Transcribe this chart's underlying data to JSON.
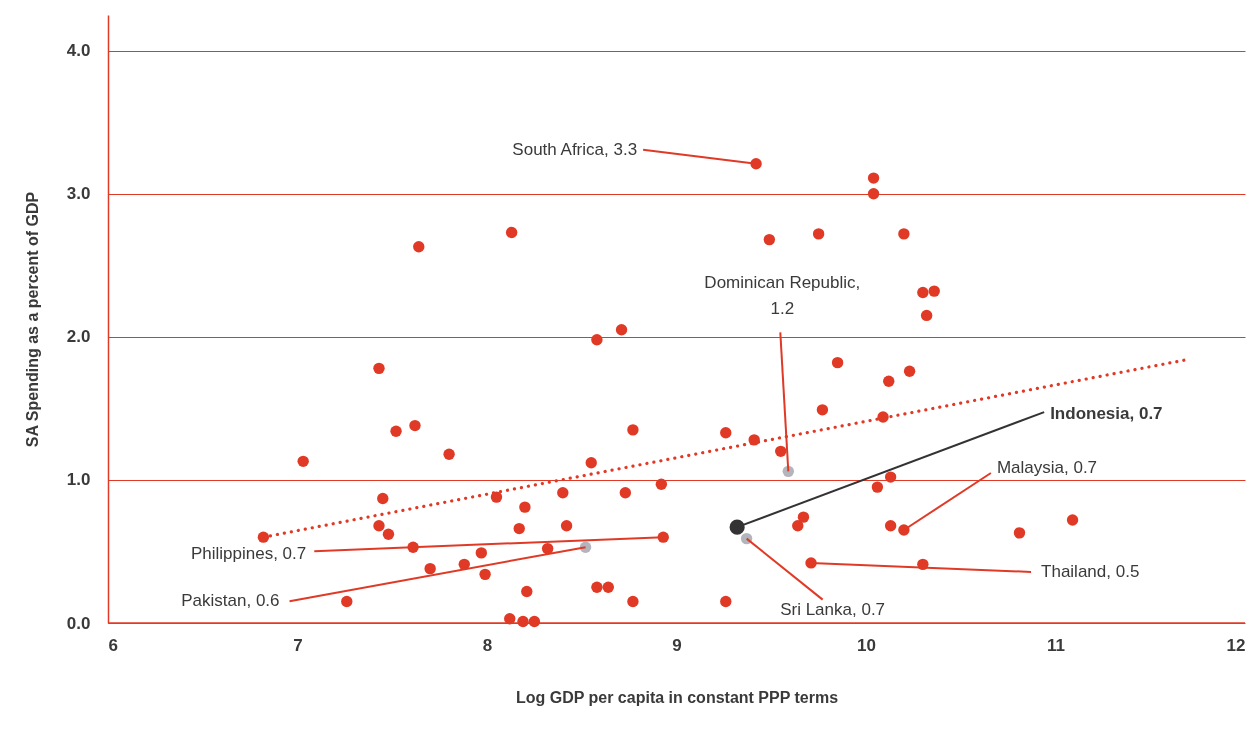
{
  "chart_data": {
    "type": "scatter",
    "xlabel": "Log GDP per capita in constant PPP terms",
    "ylabel": "SA Spending as a percent of GDP",
    "xlim": [
      6,
      12
    ],
    "ylim": [
      0,
      4.25
    ],
    "xticks": [
      6,
      7,
      8,
      9,
      10,
      11,
      12
    ],
    "yticks": [
      {
        "value": 0,
        "label": "0.0"
      },
      {
        "value": 1,
        "label": "1.0"
      },
      {
        "value": 2,
        "label": "2.0"
      },
      {
        "value": 3,
        "label": "3.0"
      },
      {
        "value": 4,
        "label": "4.0"
      }
    ],
    "grid": "y",
    "series": [
      {
        "marker": "circle",
        "color": "#e03a26",
        "x": [
          6.82,
          7.03,
          7.64,
          8.13,
          7.43,
          7.52,
          7.62,
          7.8,
          7.45,
          7.43,
          7.48,
          7.61,
          7.7,
          7.88,
          7.97,
          7.99,
          7.26,
          8.05,
          8.2,
          8.17,
          8.32,
          8.21,
          8.12,
          8.19,
          8.25,
          8.4,
          8.42,
          8.55,
          8.58,
          8.71,
          8.73,
          8.77,
          8.58,
          8.64,
          8.77,
          8.92,
          8.93,
          9.42,
          10.04,
          10.04,
          9.49,
          9.75,
          10.2,
          10.3,
          10.36,
          10.32,
          9.85,
          10.23,
          10.12,
          9.77,
          10.09,
          9.26,
          9.41,
          9.55,
          10.13,
          10.06,
          9.67,
          9.64,
          10.13,
          10.2,
          10.81,
          11.09,
          9.71,
          10.3,
          9.26
        ],
        "values": [
          0.6,
          1.13,
          2.63,
          2.73,
          1.78,
          1.34,
          1.38,
          1.18,
          0.87,
          0.68,
          0.62,
          0.53,
          0.38,
          0.41,
          0.49,
          0.34,
          0.15,
          0.88,
          0.81,
          0.66,
          0.52,
          0.22,
          0.03,
          0.01,
          0.01,
          0.91,
          0.68,
          1.12,
          1.98,
          2.05,
          0.91,
          1.35,
          0.25,
          0.25,
          0.15,
          0.97,
          0.6,
          3.21,
          3.11,
          3.0,
          2.68,
          2.72,
          2.72,
          2.31,
          2.32,
          2.15,
          1.82,
          1.76,
          1.69,
          1.49,
          1.44,
          1.33,
          1.28,
          1.2,
          1.02,
          0.95,
          0.74,
          0.68,
          0.68,
          0.65,
          0.63,
          0.72,
          0.42,
          0.41,
          0.15
        ]
      },
      {
        "marker": "circle",
        "color": "#b4b4bc",
        "x": [
          8.52,
          9.59,
          9.37
        ],
        "values": [
          0.53,
          1.06,
          0.59
        ]
      },
      {
        "marker": "circle",
        "color": "#333333",
        "x": [
          9.32
        ],
        "values": [
          0.67
        ]
      },
      {
        "type": "line",
        "color": "#e03a26",
        "line_style": "dotted",
        "x": [
          6.82,
          11.69
        ],
        "values": [
          0.6,
          1.84
        ]
      }
    ],
    "annotations": [
      {
        "text": "South Africa, 3.3",
        "x": 9.42,
        "y": 3.21
      },
      {
        "text": "Dominican Republic, 1.2",
        "x": 9.59,
        "y": 1.06
      },
      {
        "text": "Indonesia, 0.7",
        "x": 9.32,
        "y": 0.67
      },
      {
        "text": "Malaysia, 0.7",
        "x": 10.2,
        "y": 0.65
      },
      {
        "text": "Thailand, 0.5",
        "x": 9.71,
        "y": 0.42
      },
      {
        "text": "Sri Lanka, 0.7",
        "x": 9.37,
        "y": 0.59
      },
      {
        "text": "Philippines, 0.7",
        "x": 8.93,
        "y": 0.6
      },
      {
        "text": "Pakistan, 0.6",
        "x": 8.52,
        "y": 0.53
      }
    ]
  }
}
